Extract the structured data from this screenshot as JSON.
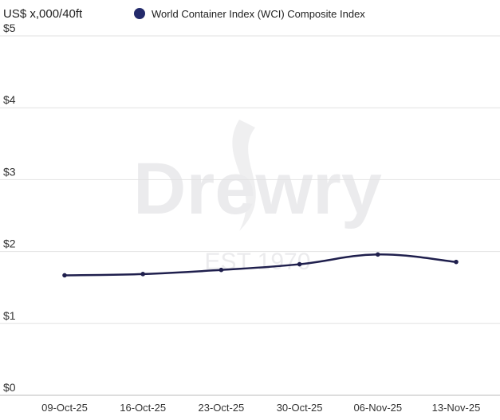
{
  "chart_data": {
    "type": "line",
    "title": "",
    "ylabel": "US$ x,000/40ft",
    "xlabel": "",
    "legend": {
      "position": "top",
      "entries": [
        "World Container Index (WCI) Composite Index"
      ]
    },
    "categories": [
      "09-Oct-25",
      "16-Oct-25",
      "23-Oct-25",
      "30-Oct-25",
      "06-Nov-25",
      "13-Nov-25"
    ],
    "series": [
      {
        "name": "World Container Index (WCI) Composite Index",
        "values": [
          1.669,
          1.687,
          1.744,
          1.823,
          1.959,
          1.855
        ],
        "color": "#1f1f4d"
      }
    ],
    "yticks": [
      "$0",
      "$1",
      "$2",
      "$3",
      "$4",
      "$5"
    ],
    "ylim": [
      0,
      5
    ],
    "grid": true,
    "watermark": [
      "Drewry",
      "EST 1970"
    ]
  }
}
